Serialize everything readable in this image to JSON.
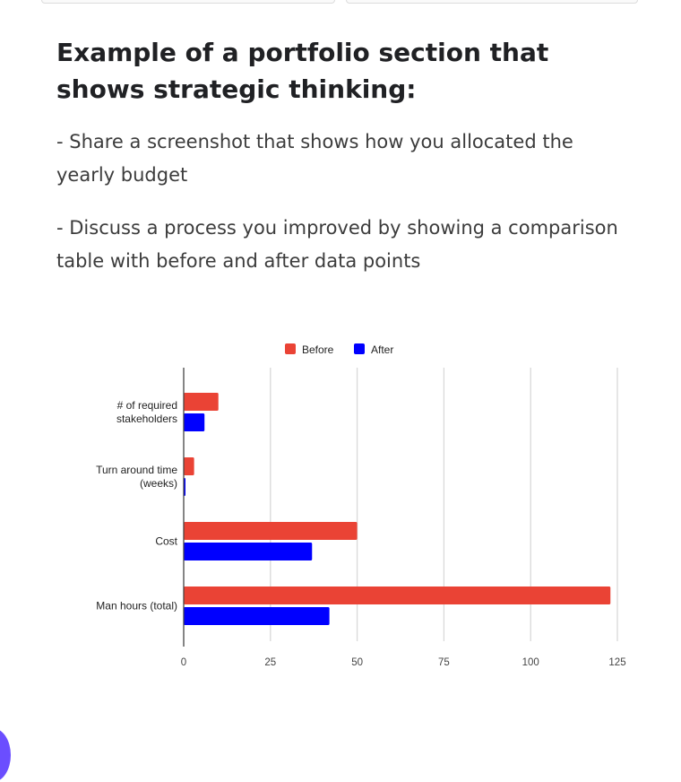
{
  "heading": "Example of a portfolio section that shows strategic thinking:",
  "paragraphs": [
    "- Share a screenshot that shows how you allocated the yearly budget",
    "- Discuss a process you improved by showing a comparison table with before and after data points"
  ],
  "chart_data": {
    "type": "bar",
    "orientation": "horizontal",
    "categories": [
      [
        "# of required",
        "stakeholders"
      ],
      [
        "Turn around time",
        "(weeks)"
      ],
      [
        "Cost"
      ],
      [
        "Man hours (total)"
      ]
    ],
    "series": [
      {
        "name": "Before",
        "color": "#ea4335",
        "values": [
          10,
          3,
          50,
          123
        ]
      },
      {
        "name": "After",
        "color": "#0000ff",
        "values": [
          6,
          0.5,
          37,
          42
        ]
      }
    ],
    "xlim": [
      0,
      125
    ],
    "xticks": [
      "0",
      "25",
      "50",
      "75",
      "100",
      "125"
    ],
    "grid": true,
    "legend": "top"
  }
}
